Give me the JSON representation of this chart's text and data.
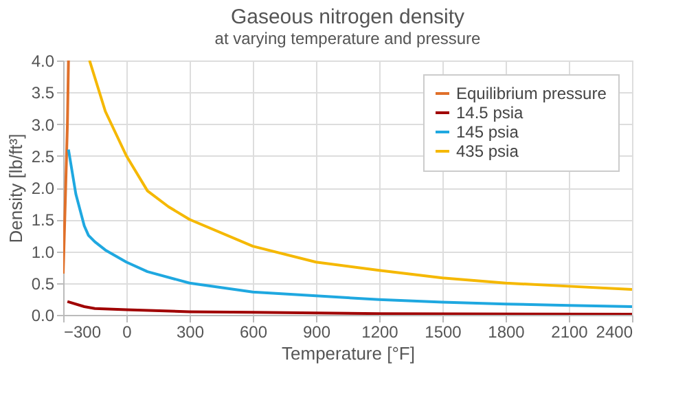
{
  "chart_data": {
    "type": "line",
    "title": "Gaseous nitrogen density",
    "subtitle": "at varying temperature and pressure",
    "xlabel": "Temperature [°F]",
    "ylabel": "Density [lb/ft³]",
    "xlim": [
      -300,
      2400
    ],
    "xticks": [
      -300,
      0,
      300,
      600,
      900,
      1200,
      1500,
      1800,
      2100,
      2400
    ],
    "ylim": [
      0,
      4
    ],
    "yticks": [
      {
        "value": 0,
        "label": "0.0"
      },
      {
        "value": 0.5,
        "label": "0.5"
      },
      {
        "value": 1,
        "label": "1.0"
      },
      {
        "value": 1.5,
        "label": "1.5"
      },
      {
        "value": 2,
        "label": "2.0"
      },
      {
        "value": 2.5,
        "label": "2.5"
      },
      {
        "value": 3,
        "label": "3.0"
      },
      {
        "value": 3.5,
        "label": "3.5"
      },
      {
        "value": 4,
        "label": "4.0"
      }
    ],
    "grid": true,
    "legend": "top right",
    "marker": "none",
    "line_style": "solid",
    "series": [
      {
        "name": "Equilibrium pressure",
        "color": "#e0702a",
        "x": [
          -300,
          -290,
          -280,
          -275
        ],
        "values": [
          0.65,
          1.8,
          3.0,
          4.0
        ]
      },
      {
        "name": "14.5 psia",
        "color": "#a00000",
        "x": [
          -280,
          -200,
          -150,
          0,
          300,
          600,
          1200,
          2400
        ],
        "values": [
          0.21,
          0.13,
          0.1,
          0.08,
          0.05,
          0.04,
          0.02,
          0.01
        ]
      },
      {
        "name": "145 psia",
        "color": "#1fa8e0",
        "x": [
          -275,
          -240,
          -200,
          -180,
          -150,
          -100,
          0,
          100,
          300,
          600,
          900,
          1200,
          1500,
          1800,
          2100,
          2400
        ],
        "values": [
          2.6,
          1.9,
          1.4,
          1.25,
          1.15,
          1.02,
          0.83,
          0.68,
          0.5,
          0.36,
          0.3,
          0.24,
          0.2,
          0.17,
          0.15,
          0.13
        ]
      },
      {
        "name": "435 psia",
        "color": "#f5b800",
        "x": [
          -175,
          -100,
          0,
          100,
          200,
          300,
          600,
          900,
          1200,
          1500,
          1800,
          2100,
          2400
        ],
        "values": [
          4.0,
          3.2,
          2.5,
          1.95,
          1.7,
          1.5,
          1.08,
          0.83,
          0.7,
          0.58,
          0.5,
          0.45,
          0.4
        ]
      }
    ]
  }
}
